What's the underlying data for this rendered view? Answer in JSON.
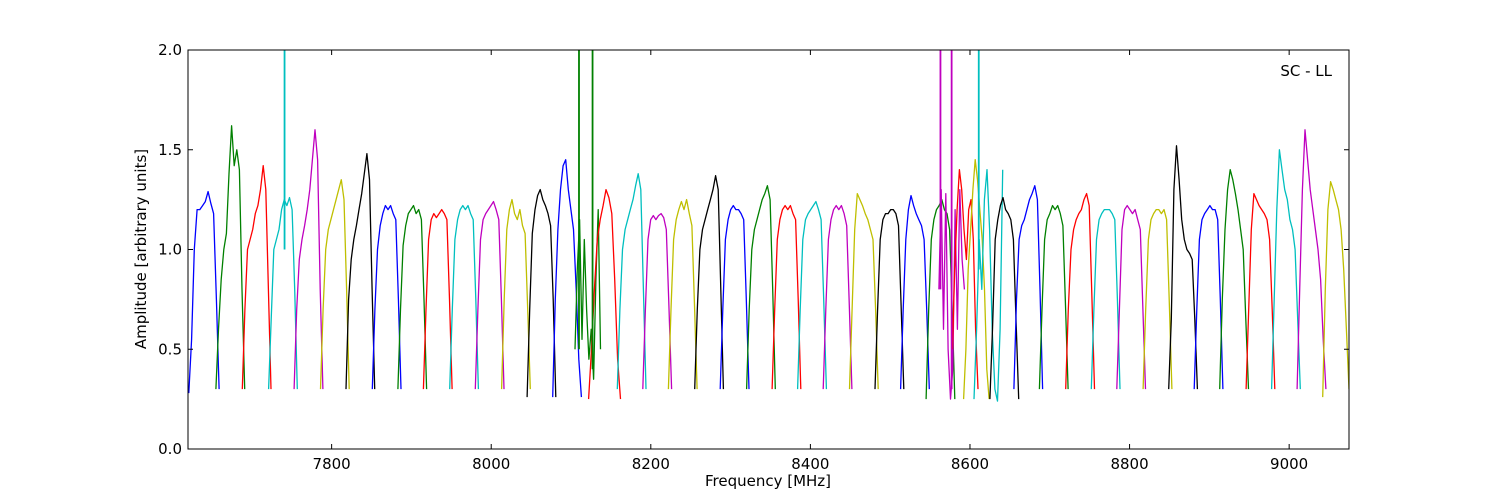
{
  "chart_data": {
    "type": "line",
    "title": "",
    "annotation": "SC - LL",
    "xlabel": "Frequency [MHz]",
    "ylabel": "Amplitude [arbitrary units]",
    "xlim": [
      7620,
      9075
    ],
    "ylim": [
      0.0,
      2.0
    ],
    "xticks": [
      7800,
      8000,
      8200,
      8400,
      8600,
      8800,
      9000
    ],
    "yticks": [
      0.0,
      0.5,
      1.0,
      1.5,
      2.0
    ],
    "xtick_labels": [
      "7800",
      "8000",
      "8200",
      "8400",
      "8600",
      "8800",
      "9000"
    ],
    "ytick_labels": [
      "0.0",
      "0.5",
      "1.0",
      "1.5",
      "2.0"
    ],
    "grid": false,
    "color_cycle": [
      "#0000ff",
      "#008000",
      "#ff0000",
      "#00bfbf",
      "#bf00bf",
      "#bfbf00",
      "#000000"
    ],
    "band_width_mhz": 32,
    "series": [
      {
        "start": 7621,
        "end": 7659,
        "color": "#0000ff",
        "values": [
          0.28,
          0.55,
          1.0,
          1.2,
          1.2,
          1.22,
          1.24,
          1.29,
          1.23,
          1.18,
          0.75,
          0.3
        ]
      },
      {
        "start": 7655,
        "end": 7691,
        "color": "#008000",
        "values": [
          0.3,
          0.6,
          0.85,
          1.0,
          1.08,
          1.38,
          1.62,
          1.42,
          1.5,
          1.4,
          0.8,
          0.3
        ]
      },
      {
        "start": 7688,
        "end": 7724,
        "color": "#ff0000",
        "values": [
          0.3,
          0.7,
          1.0,
          1.05,
          1.1,
          1.18,
          1.22,
          1.3,
          1.42,
          1.3,
          0.8,
          0.3
        ]
      },
      {
        "start": 7721,
        "end": 7757,
        "color": "#00bfbf",
        "values": [
          0.3,
          0.65,
          1.0,
          1.05,
          1.1,
          1.2,
          1.25,
          1.22,
          1.26,
          1.2,
          0.8,
          0.3
        ]
      },
      {
        "start": 7753,
        "end": 7789,
        "color": "#bf00bf",
        "values": [
          0.3,
          0.7,
          0.95,
          1.05,
          1.12,
          1.2,
          1.3,
          1.45,
          1.6,
          1.45,
          0.8,
          0.3
        ]
      },
      {
        "start": 7786,
        "end": 7822,
        "color": "#bfbf00",
        "values": [
          0.3,
          0.7,
          1.0,
          1.1,
          1.15,
          1.2,
          1.25,
          1.3,
          1.35,
          1.25,
          0.8,
          0.3
        ]
      },
      {
        "start": 7818,
        "end": 7854,
        "color": "#000000",
        "values": [
          0.3,
          0.75,
          0.95,
          1.05,
          1.12,
          1.2,
          1.28,
          1.38,
          1.48,
          1.35,
          0.8,
          0.3
        ]
      },
      {
        "start": 7851,
        "end": 7887,
        "color": "#0000ff",
        "values": [
          0.3,
          0.7,
          1.0,
          1.12,
          1.18,
          1.22,
          1.2,
          1.22,
          1.18,
          1.15,
          0.75,
          0.3
        ]
      },
      {
        "start": 7883,
        "end": 7919,
        "color": "#008000",
        "values": [
          0.3,
          0.7,
          1.02,
          1.12,
          1.18,
          1.2,
          1.22,
          1.18,
          1.2,
          1.15,
          0.75,
          0.3
        ]
      },
      {
        "start": 7915,
        "end": 7951,
        "color": "#ff0000",
        "values": [
          0.3,
          0.7,
          1.05,
          1.15,
          1.18,
          1.16,
          1.18,
          1.2,
          1.18,
          1.15,
          0.75,
          0.3
        ]
      },
      {
        "start": 7948,
        "end": 7984,
        "color": "#00bfbf",
        "values": [
          0.3,
          0.7,
          1.05,
          1.15,
          1.2,
          1.22,
          1.2,
          1.22,
          1.18,
          1.15,
          0.75,
          0.3
        ]
      },
      {
        "start": 7980,
        "end": 8016,
        "color": "#bf00bf",
        "values": [
          0.3,
          0.7,
          1.05,
          1.15,
          1.18,
          1.2,
          1.22,
          1.24,
          1.2,
          1.15,
          0.75,
          0.3
        ]
      },
      {
        "start": 8013,
        "end": 8049,
        "color": "#bfbf00",
        "values": [
          0.3,
          0.75,
          1.1,
          1.2,
          1.25,
          1.18,
          1.15,
          1.2,
          1.12,
          1.08,
          0.7,
          0.3
        ]
      },
      {
        "start": 8045,
        "end": 8081,
        "color": "#000000",
        "values": [
          0.26,
          0.7,
          1.08,
          1.2,
          1.27,
          1.3,
          1.25,
          1.22,
          1.18,
          1.12,
          0.75,
          0.26
        ]
      },
      {
        "start": 8077,
        "end": 8113,
        "color": "#0000ff",
        "values": [
          0.26,
          0.75,
          1.1,
          1.3,
          1.42,
          1.45,
          1.3,
          1.2,
          1.1,
          0.8,
          0.45,
          0.26
        ]
      },
      {
        "start": 8105,
        "end": 8137,
        "color": "#008000",
        "values": [
          0.5,
          0.9,
          1.15,
          0.55,
          1.05,
          0.7,
          0.45,
          0.6,
          0.35,
          0.85,
          1.2,
          0.5
        ]
      },
      {
        "start": 8122,
        "end": 8162,
        "color": "#ff0000",
        "values": [
          0.25,
          0.5,
          0.8,
          1.05,
          1.15,
          1.22,
          1.3,
          1.26,
          1.18,
          0.85,
          0.45,
          0.25
        ]
      },
      {
        "start": 8158,
        "end": 8194,
        "color": "#00bfbf",
        "values": [
          0.3,
          0.7,
          1.0,
          1.1,
          1.15,
          1.2,
          1.25,
          1.32,
          1.38,
          1.3,
          0.8,
          0.3
        ]
      },
      {
        "start": 8190,
        "end": 8226,
        "color": "#bf00bf",
        "values": [
          0.3,
          0.7,
          1.05,
          1.15,
          1.17,
          1.15,
          1.17,
          1.18,
          1.16,
          1.1,
          0.72,
          0.3
        ]
      },
      {
        "start": 8222,
        "end": 8258,
        "color": "#bfbf00",
        "values": [
          0.3,
          0.7,
          1.05,
          1.15,
          1.2,
          1.24,
          1.2,
          1.25,
          1.18,
          1.12,
          0.72,
          0.3
        ]
      },
      {
        "start": 8255,
        "end": 8291,
        "color": "#000000",
        "values": [
          0.3,
          0.7,
          1.0,
          1.1,
          1.15,
          1.2,
          1.25,
          1.3,
          1.37,
          1.3,
          0.8,
          0.3
        ]
      },
      {
        "start": 8287,
        "end": 8323,
        "color": "#0000ff",
        "values": [
          0.3,
          0.7,
          1.05,
          1.15,
          1.2,
          1.22,
          1.2,
          1.2,
          1.18,
          1.15,
          0.75,
          0.3
        ]
      },
      {
        "start": 8320,
        "end": 8356,
        "color": "#008000",
        "values": [
          0.3,
          0.7,
          1.0,
          1.1,
          1.15,
          1.2,
          1.25,
          1.28,
          1.32,
          1.25,
          0.8,
          0.3
        ]
      },
      {
        "start": 8352,
        "end": 8388,
        "color": "#ff0000",
        "values": [
          0.3,
          0.7,
          1.05,
          1.15,
          1.2,
          1.22,
          1.2,
          1.22,
          1.18,
          1.15,
          0.75,
          0.3
        ]
      },
      {
        "start": 8384,
        "end": 8420,
        "color": "#00bfbf",
        "values": [
          0.3,
          0.7,
          1.05,
          1.15,
          1.18,
          1.2,
          1.22,
          1.24,
          1.2,
          1.15,
          0.75,
          0.3
        ]
      },
      {
        "start": 8416,
        "end": 8452,
        "color": "#bf00bf",
        "values": [
          0.3,
          0.7,
          1.05,
          1.15,
          1.2,
          1.22,
          1.2,
          1.22,
          1.18,
          1.12,
          0.72,
          0.3
        ]
      },
      {
        "start": 8449,
        "end": 8485,
        "color": "#bfbf00",
        "values": [
          0.3,
          0.7,
          1.1,
          1.28,
          1.25,
          1.22,
          1.18,
          1.15,
          1.1,
          1.05,
          0.7,
          0.3
        ]
      },
      {
        "start": 8481,
        "end": 8517,
        "color": "#000000",
        "values": [
          0.3,
          0.7,
          1.05,
          1.15,
          1.18,
          1.18,
          1.2,
          1.2,
          1.18,
          1.12,
          0.72,
          0.3
        ]
      },
      {
        "start": 8513,
        "end": 8549,
        "color": "#0000ff",
        "values": [
          0.3,
          0.7,
          1.05,
          1.2,
          1.27,
          1.22,
          1.18,
          1.15,
          1.12,
          1.05,
          0.7,
          0.3
        ]
      },
      {
        "start": 8545,
        "end": 8581,
        "color": "#008000",
        "values": [
          0.25,
          0.7,
          1.05,
          1.15,
          1.2,
          1.22,
          1.25,
          1.2,
          1.18,
          1.1,
          0.7,
          0.25
        ]
      },
      {
        "start": 8561,
        "end": 8593,
        "color": "#bf00bf",
        "values": [
          0.8,
          1.3,
          0.6,
          1.28,
          0.5,
          0.25,
          0.4,
          1.2,
          0.6,
          1.3,
          0.95,
          0.8
        ]
      },
      {
        "start": 8578,
        "end": 8610,
        "color": "#ff0000",
        "values": [
          0.5,
          0.9,
          1.2,
          1.4,
          1.3,
          1.1,
          0.95,
          1.2,
          1.25,
          1.05,
          0.6,
          0.3
        ]
      },
      {
        "start": 8592,
        "end": 8624,
        "color": "#bfbf00",
        "values": [
          0.25,
          0.5,
          0.9,
          1.1,
          1.3,
          1.45,
          1.35,
          1.2,
          1.05,
          0.8,
          0.4,
          0.25
        ]
      },
      {
        "start": 8605,
        "end": 8641,
        "color": "#00bfbf",
        "values": [
          0.25,
          0.6,
          1.05,
          0.8,
          1.25,
          1.4,
          1.1,
          0.6,
          0.3,
          0.24,
          0.6,
          1.4
        ]
      },
      {
        "start": 8625,
        "end": 8661,
        "color": "#000000",
        "values": [
          0.25,
          0.6,
          1.05,
          1.15,
          1.22,
          1.26,
          1.2,
          1.18,
          1.15,
          1.05,
          0.65,
          0.25
        ]
      },
      {
        "start": 8655,
        "end": 8691,
        "color": "#0000ff",
        "values": [
          0.3,
          0.75,
          1.05,
          1.12,
          1.15,
          1.2,
          1.25,
          1.28,
          1.32,
          1.25,
          0.8,
          0.3
        ]
      },
      {
        "start": 8687,
        "end": 8723,
        "color": "#008000",
        "values": [
          0.3,
          0.7,
          1.05,
          1.15,
          1.18,
          1.22,
          1.2,
          1.22,
          1.18,
          1.12,
          0.72,
          0.3
        ]
      },
      {
        "start": 8720,
        "end": 8756,
        "color": "#ff0000",
        "values": [
          0.3,
          0.7,
          1.0,
          1.1,
          1.15,
          1.18,
          1.2,
          1.25,
          1.28,
          1.22,
          0.78,
          0.3
        ]
      },
      {
        "start": 8752,
        "end": 8788,
        "color": "#00bfbf",
        "values": [
          0.3,
          0.7,
          1.05,
          1.15,
          1.18,
          1.2,
          1.2,
          1.2,
          1.18,
          1.15,
          0.75,
          0.3
        ]
      },
      {
        "start": 8784,
        "end": 8820,
        "color": "#bf00bf",
        "values": [
          0.3,
          0.7,
          1.1,
          1.2,
          1.22,
          1.2,
          1.18,
          1.2,
          1.15,
          1.1,
          0.7,
          0.3
        ]
      },
      {
        "start": 8817,
        "end": 8853,
        "color": "#bfbf00",
        "values": [
          0.3,
          0.7,
          1.05,
          1.15,
          1.18,
          1.2,
          1.2,
          1.18,
          1.2,
          1.15,
          0.75,
          0.3
        ]
      },
      {
        "start": 8849,
        "end": 8885,
        "color": "#000000",
        "values": [
          0.3,
          0.65,
          1.3,
          1.52,
          1.35,
          1.15,
          1.05,
          1.0,
          0.98,
          0.95,
          0.65,
          0.3
        ]
      },
      {
        "start": 8881,
        "end": 8917,
        "color": "#0000ff",
        "values": [
          0.3,
          0.7,
          1.05,
          1.15,
          1.18,
          1.2,
          1.22,
          1.2,
          1.2,
          1.15,
          0.75,
          0.3
        ]
      },
      {
        "start": 8913,
        "end": 8949,
        "color": "#008000",
        "values": [
          0.3,
          0.75,
          1.1,
          1.3,
          1.4,
          1.35,
          1.28,
          1.2,
          1.1,
          1.0,
          0.65,
          0.3
        ]
      },
      {
        "start": 8946,
        "end": 8982,
        "color": "#ff0000",
        "values": [
          0.3,
          0.7,
          1.1,
          1.28,
          1.25,
          1.22,
          1.2,
          1.18,
          1.15,
          1.05,
          0.7,
          0.3
        ]
      },
      {
        "start": 8978,
        "end": 9014,
        "color": "#00bfbf",
        "values": [
          0.3,
          0.75,
          1.2,
          1.5,
          1.4,
          1.3,
          1.25,
          1.15,
          1.1,
          1.0,
          0.65,
          0.3
        ]
      },
      {
        "start": 9010,
        "end": 9046,
        "color": "#bf00bf",
        "values": [
          0.3,
          0.8,
          1.3,
          1.6,
          1.45,
          1.3,
          1.2,
          1.1,
          1.0,
          0.85,
          0.55,
          0.3
        ]
      },
      {
        "start": 9042,
        "end": 9075,
        "color": "#bfbf00",
        "values": [
          0.26,
          0.8,
          1.2,
          1.34,
          1.3,
          1.25,
          1.2,
          1.1,
          0.9,
          0.6,
          0.3
        ]
      }
    ],
    "spikes": [
      {
        "x": 7741,
        "color": "#00bfbf",
        "y_from": 1.0,
        "y_to": 2.0
      },
      {
        "x": 8110,
        "color": "#008000",
        "y_from": 0.5,
        "y_to": 2.0
      },
      {
        "x": 8127,
        "color": "#008000",
        "y_from": 0.4,
        "y_to": 2.0
      },
      {
        "x": 8563,
        "color": "#bf00bf",
        "y_from": 0.8,
        "y_to": 2.0
      },
      {
        "x": 8577,
        "color": "#bf00bf",
        "y_from": 0.3,
        "y_to": 2.0
      },
      {
        "x": 8611,
        "color": "#00bfbf",
        "y_from": 0.9,
        "y_to": 2.0
      }
    ]
  }
}
